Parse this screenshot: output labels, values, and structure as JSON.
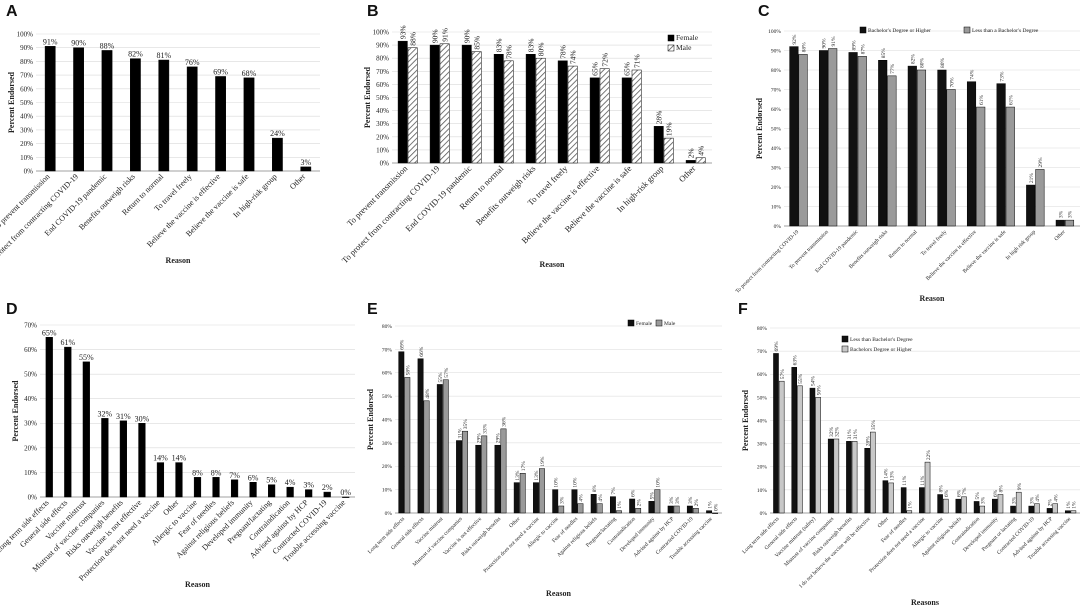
{
  "chart_data": [
    {
      "panel": "A",
      "type": "bar",
      "xlabel": "Reason",
      "ylabel": "Percent Endorsed",
      "ylim": [
        0,
        100
      ],
      "yticks": [
        "0%",
        "10%",
        "20%",
        "30%",
        "40%",
        "50%",
        "60%",
        "70%",
        "80%",
        "90%",
        "100%"
      ],
      "categories": [
        "To prevent transmission",
        "To protect from contracting COVID-19",
        "End COVID-19 pandemic",
        "Benefits outweigh risks",
        "Return to normal",
        "To travel freely",
        "Believe the vaccine is effective",
        "Believe the vaccine is safe",
        "In high-risk group",
        "Other"
      ],
      "series": [
        {
          "name": "",
          "values": [
            91,
            90,
            88,
            82,
            81,
            76,
            69,
            68,
            24,
            3
          ],
          "labels": [
            "91%",
            "90%",
            "88%",
            "82%",
            "81%",
            "76%",
            "69%",
            "68%",
            "24%",
            "3%"
          ]
        }
      ]
    },
    {
      "panel": "B",
      "type": "bar",
      "xlabel": "Reason",
      "ylabel": "Percent Endorsed",
      "ylim": [
        0,
        100
      ],
      "yticks": [
        "0%",
        "10%",
        "20%",
        "30%",
        "40%",
        "50%",
        "60%",
        "70%",
        "80%",
        "90%",
        "100%"
      ],
      "legend": "top-right",
      "categories": [
        "To prevent transmission",
        "To protect from contracting COVID-19",
        "End COVID-19 pandemic",
        "Return to normal",
        "Benefits outweigh risks",
        "To travel freely",
        "Believe the vaccine is effective",
        "Believe the vaccine is safe",
        "In high-risk group",
        "Other"
      ],
      "series": [
        {
          "name": "Female",
          "values": [
            93,
            90,
            90,
            83,
            83,
            78,
            65,
            65,
            28,
            2
          ],
          "labels": [
            "93%",
            "90%",
            "90%",
            "83%",
            "83%",
            "78%",
            "65%",
            "65%",
            "28%",
            "2%"
          ]
        },
        {
          "name": "Male",
          "values": [
            88,
            91,
            85,
            78,
            80,
            74,
            72,
            71,
            19,
            4
          ],
          "labels": [
            "88%",
            "91%",
            "85%",
            "78%",
            "80%",
            "74%",
            "72%",
            "71%",
            "19%",
            "4%"
          ]
        }
      ]
    },
    {
      "panel": "C",
      "type": "bar",
      "xlabel": "Reason",
      "ylabel": "Percent Endorsed",
      "ylim": [
        0,
        100
      ],
      "yticks": [
        "0%",
        "10%",
        "20%",
        "30%",
        "40%",
        "50%",
        "60%",
        "70%",
        "80%",
        "90%",
        "100%"
      ],
      "legend": "top-right",
      "categories": [
        "To protect from contracting COVID-19",
        "To prevent transmission",
        "End COVID-19 pandemic",
        "Benefits outweigh risks",
        "Return to normal",
        "To travel freely",
        "Believe the vaccine is effective",
        "Believe the vaccine is safe",
        "In high risk group",
        "Other"
      ],
      "series": [
        {
          "name": "Bachelor's Degree or Higher",
          "values": [
            92,
            90,
            89,
            85,
            82,
            80,
            74,
            73,
            21,
            3
          ],
          "labels": [
            "92%",
            "90%",
            "89%",
            "85%",
            "82%",
            "80%",
            "74%",
            "73%",
            "21%",
            "3%"
          ]
        },
        {
          "name": "Less than a Bachelor's Degree",
          "values": [
            88,
            91,
            87,
            77,
            80,
            70,
            61,
            61,
            29,
            3
          ],
          "labels": [
            "88%",
            "91%",
            "87%",
            "77%",
            "80%",
            "70%",
            "61%",
            "61%",
            "29%",
            "3%"
          ]
        }
      ]
    },
    {
      "panel": "D",
      "type": "bar",
      "xlabel": "Reason",
      "ylabel": "Percent Endorsed",
      "ylim": [
        0,
        70
      ],
      "yticks": [
        "0%",
        "10%",
        "20%",
        "30%",
        "40%",
        "50%",
        "60%",
        "70%"
      ],
      "categories": [
        "Long term side effects",
        "General side effects",
        "Vaccine mistrust",
        "Mistrust of vaccine companies",
        "Risks outweigh benefits",
        "Vaccine is not effective",
        "Protection does not need a vaccine",
        "Other",
        "Allergic to vaccine",
        "Fear of needles",
        "Against religious beliefs",
        "Developed immunity",
        "Pregnant/lactating",
        "Contraindication",
        "Advised against by HCP",
        "Contracted COVID-19",
        "Trouble accessing vaccine"
      ],
      "series": [
        {
          "name": "",
          "values": [
            65,
            61,
            55,
            32,
            31,
            30,
            14,
            14,
            8,
            8,
            7,
            6,
            5,
            4,
            3,
            2,
            0
          ],
          "labels": [
            "65%",
            "61%",
            "55%",
            "32%",
            "31%",
            "30%",
            "14%",
            "14%",
            "8%",
            "8%",
            "7%",
            "6%",
            "5%",
            "4%",
            "3%",
            "2%",
            "0%"
          ]
        }
      ]
    },
    {
      "panel": "E",
      "type": "bar",
      "xlabel": "Reason",
      "ylabel": "Percent Endorsed",
      "ylim": [
        0,
        80
      ],
      "yticks": [
        "0%",
        "10%",
        "20%",
        "30%",
        "40%",
        "50%",
        "60%",
        "70%",
        "80%"
      ],
      "legend": "top-right",
      "categories": [
        "Long term side effects",
        "General side effects",
        "Vaccine mistrust",
        "Mistrust of vaccine companies",
        "Vaccine is not effective",
        "Risks outweigh benefits",
        "Other",
        "Protection does not need a vaccine",
        "Allergic to vaccine",
        "Fear of needles",
        "Against religious beliefs",
        "Pregnant/lactating",
        "Contraindication",
        "Developed immunity",
        "Advised against by HCP",
        "Contracted COVID-19",
        "Trouble accessing vaccine"
      ],
      "series": [
        {
          "name": "Female",
          "values": [
            69,
            66,
            55,
            31,
            29,
            29,
            13,
            13,
            10,
            10,
            8,
            7,
            6,
            5,
            3,
            3,
            1
          ],
          "labels": [
            "69%",
            "66%",
            "55%",
            "31%",
            "29%",
            "29%",
            "13%",
            "13%",
            "10%",
            "10%",
            "8%",
            "7%",
            "6%",
            "5%",
            "3%",
            "3%",
            "1%"
          ]
        },
        {
          "name": "Male",
          "values": [
            58,
            48,
            57,
            35,
            33,
            36,
            17,
            19,
            3,
            4,
            4,
            1,
            2,
            10,
            3,
            2,
            0
          ],
          "labels": [
            "58%",
            "48%",
            "57%",
            "35%",
            "33%",
            "36%",
            "17%",
            "19%",
            "3%",
            "4%",
            "4%",
            "1%",
            "2%",
            "10%",
            "3%",
            "2%",
            "0%"
          ]
        }
      ]
    },
    {
      "panel": "F",
      "type": "bar",
      "xlabel": "Reasons",
      "ylabel": "Percent Endorsed",
      "ylim": [
        0,
        80
      ],
      "yticks": [
        "0%",
        "10%",
        "20%",
        "30%",
        "40%",
        "50%",
        "60%",
        "70%",
        "80%"
      ],
      "legend": "top-right",
      "categories": [
        "Long term side effects",
        "General side effects",
        "Vaccine mistrust (safety)",
        "Mistrust of vaccine companies",
        "Risks outweigh benefits",
        "I do not believe the vaccine will be effective",
        "Other",
        "Fear of needles",
        "Protection does not need a vaccine",
        "Allergic to vaccine",
        "Against religious beliefs",
        "Contraindication",
        "Developed immunity",
        "Pregnant or lactating",
        "Contracted COVID-19",
        "Advised against by HCP",
        "Trouble accessing vaccine"
      ],
      "series": [
        {
          "name": "Less than Bachelor's Degree",
          "values": [
            69,
            63,
            54,
            32,
            31,
            28,
            14,
            11,
            11,
            8,
            6,
            5,
            6,
            3,
            3,
            2,
            1
          ],
          "labels": [
            "69%",
            "63%",
            "54%",
            "32%",
            "31%",
            "28%",
            "14%",
            "11%",
            "11%",
            "8%",
            "6%",
            "5%",
            "6%",
            "3%",
            "3%",
            "2%",
            "1%"
          ]
        },
        {
          "name": "Bachelors Degree or Higher",
          "values": [
            57,
            55,
            50,
            32,
            31,
            35,
            13,
            1,
            22,
            6,
            7,
            3,
            8,
            9,
            4,
            4,
            1
          ],
          "labels": [
            "57%",
            "55%",
            "50%",
            "32%",
            "31%",
            "35%",
            "13%",
            "1%",
            "22%",
            "6%",
            "7%",
            "3%",
            "8%",
            "9%",
            "4%",
            "4%",
            "1%"
          ]
        }
      ]
    }
  ]
}
